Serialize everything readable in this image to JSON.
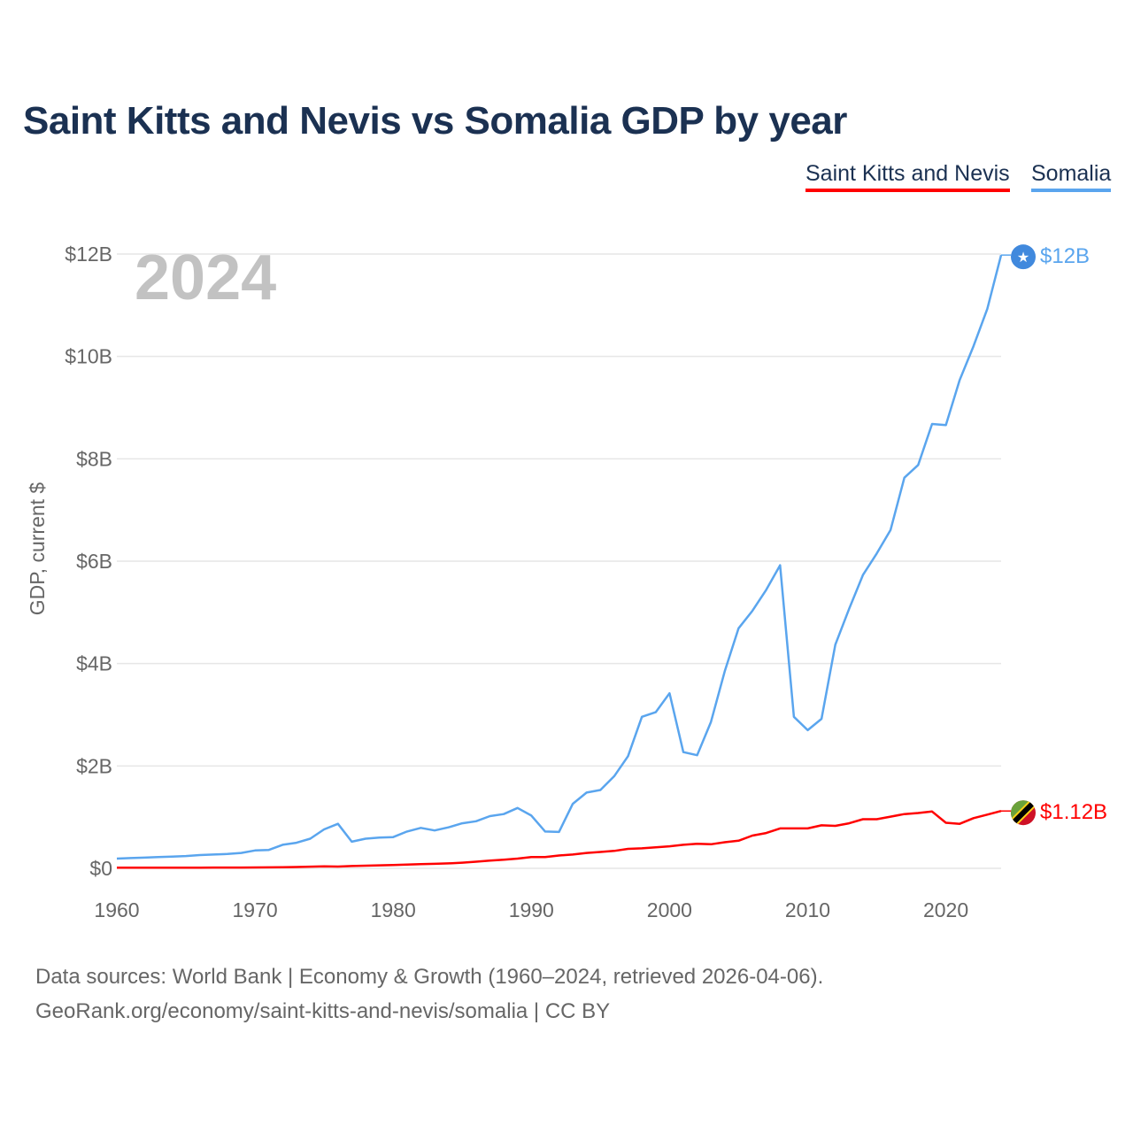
{
  "title": "Saint Kitts and Nevis vs Somalia GDP by year",
  "footer": {
    "line1": "Data sources: World Bank | Economy & Growth (1960–2024, retrieved 2026-04-06).",
    "line2": "GeoRank.org/economy/saint-kitts-and-nevis/somalia | CC BY"
  },
  "chart_data": {
    "type": "line",
    "title": "Saint Kitts and Nevis vs Somalia GDP by year",
    "ylabel": "GDP, current $",
    "xlabel": "",
    "year_label": "2024",
    "ylim": [
      0,
      12
    ],
    "xlim": [
      1960,
      2024
    ],
    "y_ticks": [
      0,
      2,
      4,
      6,
      8,
      10,
      12
    ],
    "y_tick_labels": [
      "$0",
      "$2B",
      "$4B",
      "$6B",
      "$8B",
      "$10B",
      "$12B"
    ],
    "x_ticks": [
      1960,
      1970,
      1980,
      1990,
      2000,
      2010,
      2020
    ],
    "x_tick_labels": [
      "1960",
      "1970",
      "1980",
      "1990",
      "2000",
      "2010",
      "2020"
    ],
    "grid": true,
    "legend_placement": "top-right",
    "x_start": 1960,
    "series": [
      {
        "name": "Saint Kitts and Nevis",
        "color": "#ff0000",
        "end_label": "$1.12B",
        "values": [
          0.012,
          0.012,
          0.013,
          0.013,
          0.013,
          0.014,
          0.014,
          0.015,
          0.015,
          0.016,
          0.017,
          0.019,
          0.022,
          0.026,
          0.032,
          0.04,
          0.035,
          0.045,
          0.052,
          0.059,
          0.066,
          0.075,
          0.082,
          0.088,
          0.097,
          0.11,
          0.13,
          0.15,
          0.17,
          0.19,
          0.22,
          0.22,
          0.25,
          0.27,
          0.3,
          0.32,
          0.34,
          0.38,
          0.39,
          0.41,
          0.43,
          0.46,
          0.48,
          0.47,
          0.51,
          0.54,
          0.64,
          0.69,
          0.78,
          0.78,
          0.78,
          0.84,
          0.83,
          0.88,
          0.96,
          0.96,
          1.01,
          1.06,
          1.08,
          1.11,
          0.89,
          0.87,
          0.98,
          1.05,
          1.12
        ]
      },
      {
        "name": "Somalia",
        "color": "#5aa5ee",
        "end_label": "$12B",
        "values": [
          0.19,
          0.2,
          0.21,
          0.22,
          0.23,
          0.24,
          0.26,
          0.27,
          0.28,
          0.3,
          0.35,
          0.36,
          0.46,
          0.5,
          0.58,
          0.76,
          0.87,
          0.52,
          0.58,
          0.6,
          0.61,
          0.72,
          0.79,
          0.74,
          0.8,
          0.88,
          0.92,
          1.02,
          1.06,
          1.18,
          1.03,
          0.72,
          0.71,
          1.26,
          1.48,
          1.53,
          1.8,
          2.19,
          2.96,
          3.05,
          3.42,
          2.27,
          2.21,
          2.86,
          3.85,
          4.69,
          5.03,
          5.44,
          5.92,
          2.96,
          2.7,
          2.92,
          4.37,
          5.07,
          5.73,
          6.15,
          6.61,
          7.63,
          7.88,
          8.68,
          8.66,
          9.54,
          10.2,
          10.93,
          11.98
        ]
      }
    ]
  }
}
